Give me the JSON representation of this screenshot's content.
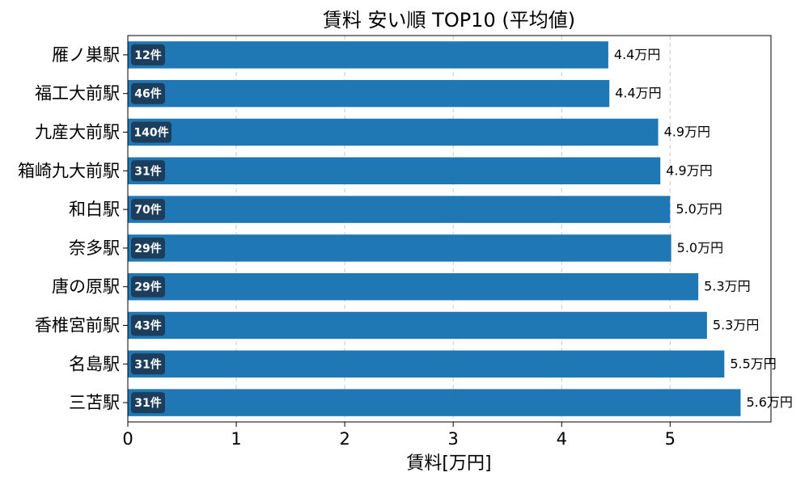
{
  "chart_data": {
    "type": "bar",
    "orientation": "horizontal",
    "title": "賃料 安い順 TOP10 (平均値)",
    "xlabel": "賃料[万円]",
    "ylabel": "",
    "xlim": [
      0,
      5.93
    ],
    "xticks": [
      0,
      1,
      2,
      3,
      4,
      5
    ],
    "grid": "x-dashed",
    "categories": [
      "雁ノ巣駅",
      "福工大前駅",
      "九産大前駅",
      "箱崎九大前駅",
      "和白駅",
      "奈多駅",
      "唐の原駅",
      "香椎宮前駅",
      "名島駅",
      "三苫駅"
    ],
    "values": [
      4.43,
      4.44,
      4.89,
      4.91,
      5.0,
      5.01,
      5.26,
      5.34,
      5.5,
      5.65
    ],
    "value_labels": [
      "4.4万円",
      "4.4万円",
      "4.9万円",
      "4.9万円",
      "5.0万円",
      "5.0万円",
      "5.3万円",
      "5.3万円",
      "5.5万円",
      "5.6万円"
    ],
    "count_labels": [
      "12件",
      "46件",
      "140件",
      "31件",
      "70件",
      "29件",
      "29件",
      "43件",
      "31件",
      "31件"
    ],
    "colors": {
      "bar": "#1f77b4",
      "badge": "#1d3d5c",
      "grid": "#c8c8c8",
      "axis": "#000000"
    }
  }
}
